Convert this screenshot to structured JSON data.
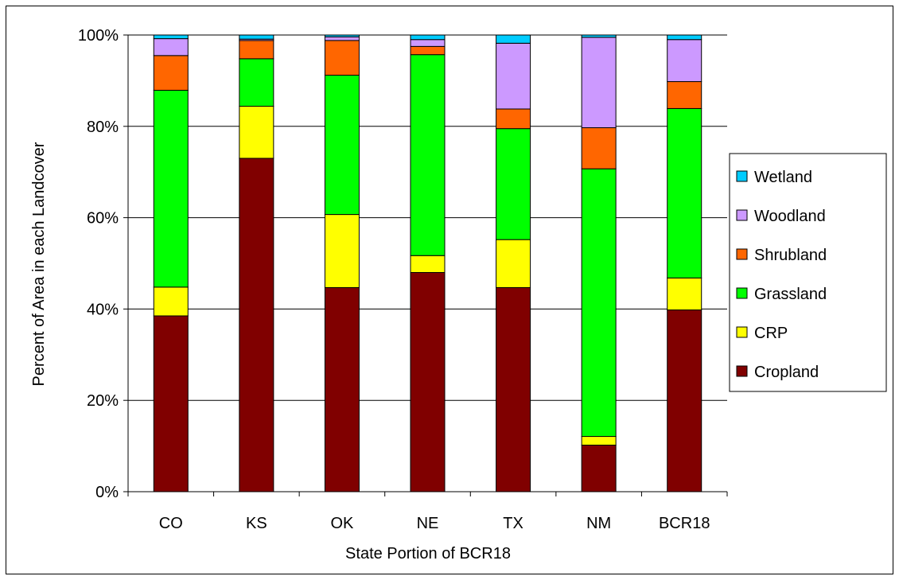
{
  "chart_data": {
    "type": "bar",
    "stacked": true,
    "percent_stacked": true,
    "categories": [
      "CO",
      "KS",
      "OK",
      "NE",
      "TX",
      "NM",
      "BCR18"
    ],
    "series": [
      {
        "name": "Cropland",
        "color": "#800000",
        "values": [
          38.5,
          73.0,
          44.7,
          48.0,
          44.7,
          10.2,
          39.8
        ]
      },
      {
        "name": "CRP",
        "color": "#ffff00",
        "values": [
          6.3,
          11.4,
          16.0,
          3.7,
          10.5,
          1.9,
          7.0
        ]
      },
      {
        "name": "Grassland",
        "color": "#00ff00",
        "values": [
          43.1,
          10.4,
          30.5,
          44.0,
          24.3,
          58.6,
          37.1
        ]
      },
      {
        "name": "Shrubland",
        "color": "#ff6600",
        "values": [
          7.6,
          4.0,
          7.6,
          1.8,
          4.3,
          9.0,
          5.9
        ]
      },
      {
        "name": "Woodland",
        "color": "#cc99ff",
        "values": [
          3.7,
          0.3,
          0.8,
          1.5,
          14.4,
          19.8,
          9.2
        ]
      },
      {
        "name": "Wetland",
        "color": "#00ccff",
        "values": [
          0.8,
          0.9,
          0.4,
          1.0,
          1.8,
          0.5,
          1.0
        ]
      }
    ],
    "xlabel": "State Portion of BCR18",
    "ylabel": "Percent of Area in each Landcover",
    "ylim": [
      0,
      100
    ],
    "yticks": [
      "0%",
      "20%",
      "40%",
      "60%",
      "80%",
      "100%"
    ],
    "grid": true,
    "legend_position": "right",
    "legend_order": [
      "Wetland",
      "Woodland",
      "Shrubland",
      "Grassland",
      "CRP",
      "Cropland"
    ]
  }
}
